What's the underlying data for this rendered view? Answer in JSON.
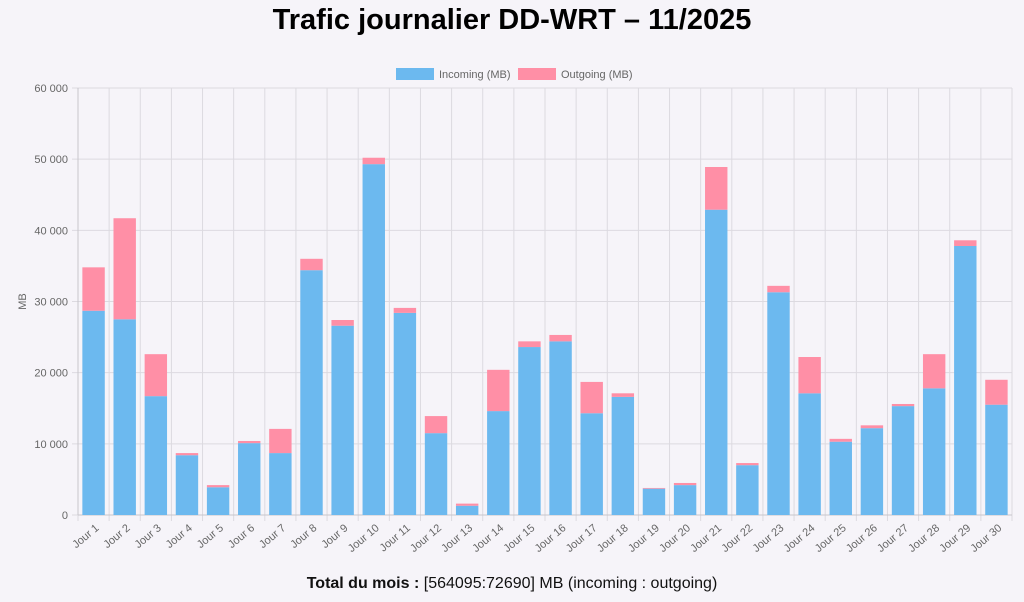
{
  "title": "Trafic journalier DD-WRT – 11/2025",
  "footer": {
    "label": "Total du mois :",
    "value": "[564095:72690] MB (incoming : outgoing)"
  },
  "colors": {
    "incoming": "#6cb9ef",
    "outgoing": "#ff8fa6"
  },
  "chart_data": {
    "type": "bar",
    "stacked": true,
    "title": "Trafic journalier DD-WRT – 11/2025",
    "xlabel": "",
    "ylabel": "MB",
    "ylim": [
      0,
      60000
    ],
    "yticks": [
      "0",
      "10 000",
      "20 000",
      "30 000",
      "40 000",
      "50 000",
      "60 000"
    ],
    "legend": "top-center",
    "grid": true,
    "categories": [
      "Jour 1",
      "Jour 2",
      "Jour 3",
      "Jour 4",
      "Jour 5",
      "Jour 6",
      "Jour 7",
      "Jour 8",
      "Jour 9",
      "Jour 10",
      "Jour 11",
      "Jour 12",
      "Jour 13",
      "Jour 14",
      "Jour 15",
      "Jour 16",
      "Jour 17",
      "Jour 18",
      "Jour 19",
      "Jour 20",
      "Jour 21",
      "Jour 22",
      "Jour 23",
      "Jour 24",
      "Jour 25",
      "Jour 26",
      "Jour 27",
      "Jour 28",
      "Jour 29",
      "Jour 30"
    ],
    "series": [
      {
        "name": "Incoming (MB)",
        "values": [
          28700,
          27500,
          16700,
          8400,
          3900,
          10100,
          8700,
          34400,
          26600,
          49300,
          28400,
          11500,
          1300,
          14600,
          23600,
          24400,
          14300,
          16600,
          3700,
          4200,
          42900,
          7000,
          31300,
          17100,
          10300,
          12200,
          15300,
          17800,
          37800,
          15500
        ]
      },
      {
        "name": "Outgoing (MB)",
        "values": [
          6100,
          14200,
          5900,
          300,
          300,
          300,
          3400,
          1600,
          800,
          900,
          700,
          2400,
          300,
          5800,
          800,
          900,
          4400,
          500,
          100,
          300,
          6000,
          300,
          900,
          5100,
          400,
          400,
          300,
          4800,
          800,
          3500
        ]
      }
    ]
  }
}
